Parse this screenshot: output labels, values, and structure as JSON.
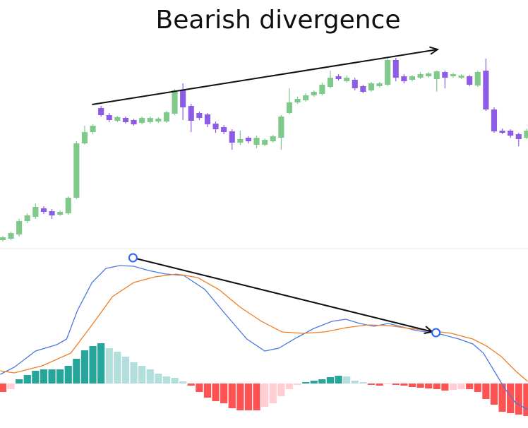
{
  "chart_data": [
    {
      "type": "candlestick",
      "annotation": {
        "text": "Bearish divergence",
        "start": {
          "x": 10.9,
          "y": 202
        },
        "end": {
          "x": 53.1,
          "y": 280
        }
      },
      "up_color": "#7fc98a",
      "down_color": "#8c5ce6",
      "xlim": [
        -0.34,
        64.14
      ],
      "ylim": [
        0,
        350
      ],
      "open": [
        10,
        12,
        18,
        37,
        43,
        55,
        51,
        46,
        48,
        70,
        147,
        163,
        197,
        187,
        179,
        183,
        180,
        176,
        177,
        178,
        178,
        189,
        223,
        200,
        190,
        188,
        175,
        170,
        164,
        148,
        155,
        145,
        145,
        150,
        155,
        190,
        205,
        208,
        215,
        217,
        227,
        242,
        235,
        237,
        228,
        222,
        228,
        230,
        265,
        242,
        237,
        240,
        242,
        238,
        248,
        242,
        240,
        242,
        229,
        250,
        195,
        165,
        165,
        160,
        155
      ],
      "high": [
        16,
        22,
        40,
        48,
        62,
        58,
        54,
        52,
        72,
        150,
        172,
        174,
        200,
        190,
        186,
        185,
        182,
        185,
        185,
        184,
        193,
        224,
        232,
        203,
        192,
        190,
        178,
        173,
        167,
        165,
        157,
        158,
        154,
        159,
        187,
        225,
        213,
        218,
        222,
        233,
        250,
        245,
        243,
        240,
        230,
        234,
        234,
        268,
        268,
        245,
        244,
        248,
        248,
        250,
        250,
        247,
        245,
        244,
        250,
        267,
        198,
        168,
        167,
        162,
        168
      ],
      "low": [
        8,
        10,
        15,
        34,
        40,
        47,
        40,
        44,
        46,
        68,
        145,
        160,
        185,
        177,
        177,
        175,
        172,
        174,
        175,
        176,
        176,
        187,
        180,
        163,
        180,
        170,
        162,
        160,
        138,
        145,
        147,
        140,
        143,
        148,
        138,
        188,
        203,
        206,
        213,
        215,
        225,
        236,
        233,
        222,
        218,
        220,
        226,
        228,
        235,
        232,
        235,
        238,
        240,
        220,
        225,
        240,
        238,
        228,
        227,
        193,
        162,
        160,
        155,
        143,
        153
      ],
      "close": [
        14,
        20,
        37,
        45,
        57,
        50,
        45,
        50,
        70,
        147,
        163,
        172,
        187,
        180,
        184,
        177,
        174,
        183,
        183,
        182,
        191,
        222,
        198,
        179,
        183,
        174,
        167,
        163,
        148,
        153,
        150,
        155,
        152,
        157,
        185,
        205,
        210,
        215,
        220,
        230,
        240,
        238,
        240,
        225,
        220,
        232,
        232,
        265,
        240,
        235,
        242,
        245,
        246,
        249,
        240,
        245,
        243,
        230,
        248,
        195,
        164,
        162,
        158,
        153,
        165
      ]
    },
    {
      "type": "macd",
      "xlim": [
        -0.34,
        64.14
      ],
      "ylim": [
        -63,
        191
      ],
      "histogram": {
        "values": [
          -12,
          -8,
          6,
          12,
          18,
          20,
          20,
          20,
          25,
          35,
          47,
          53,
          57,
          50,
          45,
          38,
          30,
          25,
          20,
          14,
          10,
          8,
          3,
          -3,
          -12,
          -20,
          -25,
          -28,
          -35,
          -38,
          -38,
          -38,
          -33,
          -28,
          -18,
          -8,
          -2,
          2,
          4,
          6,
          9,
          11,
          10,
          4,
          2,
          -2,
          -3,
          -1,
          -2,
          -3,
          -5,
          -6,
          -7,
          -8,
          -10,
          -9,
          -8,
          -8,
          -12,
          -22,
          -30,
          -40,
          -42,
          -44,
          -46
        ],
        "colors": {
          "positive_rising": "#26a69a",
          "positive_falling": "#b2dfdb",
          "negative_falling": "#ff5252",
          "negative_rising": "#ffcdd2"
        }
      },
      "series": [
        {
          "color": "#4a78e0",
          "x": [
            -0.3,
            1.4,
            4.0,
            6.6,
            7.8,
            9.1,
            10.9,
            12.6,
            14.3,
            16.0,
            17.8,
            19.9,
            22.1,
            24.7,
            27.2,
            29.8,
            32.0,
            33.7,
            35.9,
            38.0,
            40.2,
            41.9,
            43.6,
            45.3,
            47.1,
            48.8,
            50.5,
            53.1,
            55.7,
            57.4,
            58.7,
            60.0,
            61.3,
            62.6,
            64.1
          ],
          "values": [
            13,
            23,
            46,
            55,
            63,
            103,
            143,
            163,
            167,
            166,
            160,
            155,
            153,
            133,
            98,
            63,
            46,
            50,
            65,
            78,
            88,
            91,
            85,
            81,
            85,
            80,
            75,
            71,
            63,
            56,
            43,
            18,
            -7,
            -27,
            -37
          ]
        },
        {
          "color": "#f07d22",
          "x": [
            -0.3,
            1.4,
            4.8,
            8.3,
            10.9,
            13.4,
            16.0,
            18.6,
            21.2,
            23.8,
            26.4,
            29.0,
            31.6,
            34.1,
            36.7,
            39.3,
            41.9,
            44.5,
            47.1,
            49.7,
            52.2,
            54.8,
            57.4,
            59.1,
            60.9,
            62.6,
            64.1
          ],
          "values": [
            18,
            15,
            25,
            43,
            83,
            123,
            143,
            151,
            155,
            150,
            133,
            108,
            88,
            73,
            71,
            73,
            79,
            83,
            82,
            78,
            75,
            71,
            63,
            53,
            38,
            18,
            3
          ]
        }
      ],
      "annotation": {
        "start": {
          "x": 15.9,
          "y": 178
        },
        "end": {
          "x": 52.9,
          "y": 72
        }
      }
    }
  ]
}
